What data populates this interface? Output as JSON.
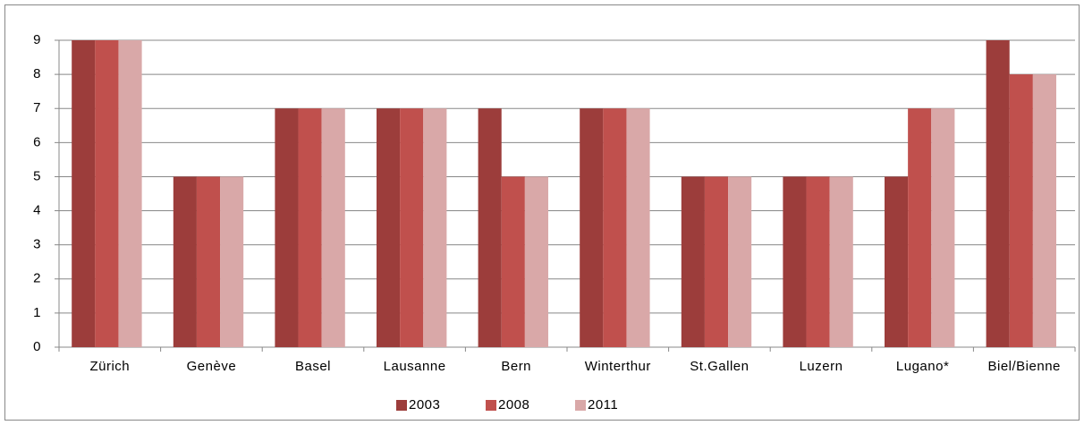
{
  "chart_data": {
    "type": "bar",
    "categories": [
      "Zürich",
      "Genève",
      "Basel",
      "Lausanne",
      "Bern",
      "Winterthur",
      "St.Gallen",
      "Luzern",
      "Lugano*",
      "Biel/Bienne"
    ],
    "series": [
      {
        "name": "2003",
        "color": "#9c3d3b",
        "values": [
          9,
          5,
          7,
          7,
          7,
          7,
          5,
          5,
          5,
          9
        ]
      },
      {
        "name": "2008",
        "color": "#c0504d",
        "values": [
          9,
          5,
          7,
          7,
          5,
          7,
          5,
          5,
          7,
          8
        ]
      },
      {
        "name": "2011",
        "color": "#d9a8a8",
        "values": [
          9,
          5,
          7,
          7,
          5,
          7,
          5,
          5,
          7,
          8
        ]
      }
    ],
    "ylim": [
      0,
      9
    ],
    "yticks": [
      0,
      1,
      2,
      3,
      4,
      5,
      6,
      7,
      8,
      9
    ],
    "grid": true,
    "legend": "bottom"
  }
}
